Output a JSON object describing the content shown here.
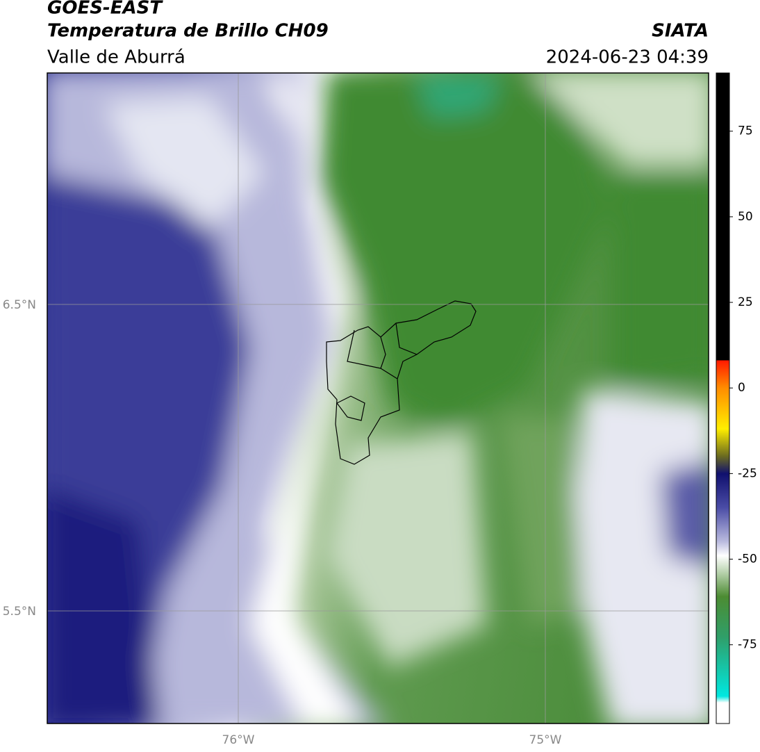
{
  "header": {
    "title": "GOES-EAST",
    "subtitle": "Temperatura de Brillo CH09",
    "region": "Valle de Aburrá",
    "source": "SIATA",
    "timestamp": "2024-06-23 04:39"
  },
  "map": {
    "lat_labels": [
      "6.5°N",
      "5.5°N"
    ],
    "lon_labels": [
      "76°W",
      "75°W"
    ]
  },
  "colorbar": {
    "range": [
      -98,
      92
    ],
    "ticks": [
      75,
      50,
      25,
      0,
      -25,
      -50,
      -75
    ]
  }
}
